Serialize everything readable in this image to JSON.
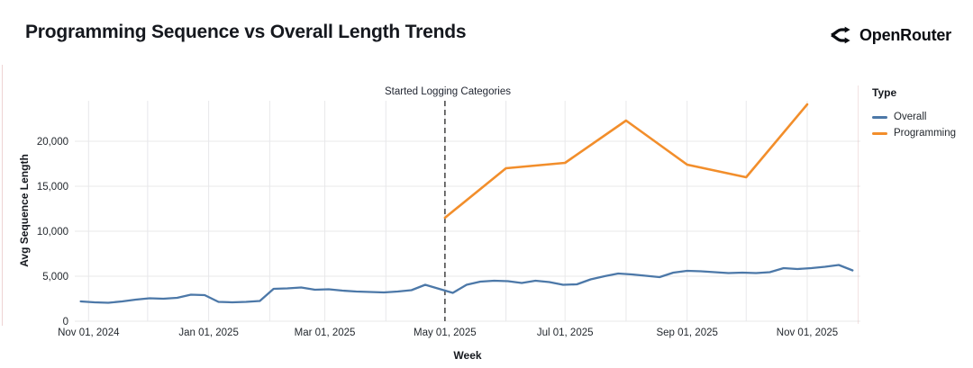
{
  "header": {
    "title": "Programming Sequence vs Overall Length Trends",
    "brand": "OpenRouter"
  },
  "chart_data": {
    "type": "line",
    "title": "Programming Sequence vs Overall Length Trends",
    "xlabel": "Week",
    "ylabel": "Avg Sequence Length",
    "grid": true,
    "legend_position": "right",
    "x_domain": [
      "2024-10-25",
      "2025-11-28"
    ],
    "y_domain": [
      0,
      24500
    ],
    "y_ticks": [
      0,
      5000,
      10000,
      15000,
      20000
    ],
    "x_ticks": [
      {
        "date": "2024-11-01",
        "label": "Nov 01, 2024"
      },
      {
        "date": "2025-01-01",
        "label": "Jan 01, 2025"
      },
      {
        "date": "2025-03-01",
        "label": "Mar 01, 2025"
      },
      {
        "date": "2025-05-01",
        "label": "May 01, 2025"
      },
      {
        "date": "2025-07-01",
        "label": "Jul 01, 2025"
      },
      {
        "date": "2025-09-01",
        "label": "Sep 01, 2025"
      },
      {
        "date": "2025-11-01",
        "label": "Nov 01, 2025"
      }
    ],
    "grid_dates": [
      "2024-11-01",
      "2024-12-01",
      "2025-01-01",
      "2025-02-01",
      "2025-03-01",
      "2025-04-01",
      "2025-05-01",
      "2025-06-01",
      "2025-07-01",
      "2025-08-01",
      "2025-09-01",
      "2025-10-01",
      "2025-11-01"
    ],
    "annotation": {
      "label": "Started Logging Categories",
      "date": "2025-05-01"
    },
    "legend": {
      "title": "Type",
      "entries": [
        {
          "label": "Overall",
          "color": "#4c78a8"
        },
        {
          "label": "Programming",
          "color": "#f28e2b"
        }
      ]
    },
    "series": [
      {
        "name": "Overall",
        "color": "#4c78a8",
        "stroke_width": 2.3,
        "points": [
          [
            "2024-10-28",
            2200
          ],
          [
            "2024-11-04",
            2100
          ],
          [
            "2024-11-11",
            2050
          ],
          [
            "2024-11-18",
            2200
          ],
          [
            "2024-11-25",
            2400
          ],
          [
            "2024-12-02",
            2550
          ],
          [
            "2024-12-09",
            2500
          ],
          [
            "2024-12-16",
            2600
          ],
          [
            "2024-12-23",
            2950
          ],
          [
            "2024-12-30",
            2900
          ],
          [
            "2025-01-06",
            2150
          ],
          [
            "2025-01-13",
            2100
          ],
          [
            "2025-01-20",
            2150
          ],
          [
            "2025-01-27",
            2250
          ],
          [
            "2025-02-03",
            3600
          ],
          [
            "2025-02-10",
            3650
          ],
          [
            "2025-02-17",
            3750
          ],
          [
            "2025-02-24",
            3500
          ],
          [
            "2025-03-03",
            3550
          ],
          [
            "2025-03-10",
            3400
          ],
          [
            "2025-03-17",
            3300
          ],
          [
            "2025-03-24",
            3250
          ],
          [
            "2025-03-31",
            3200
          ],
          [
            "2025-04-07",
            3300
          ],
          [
            "2025-04-14",
            3450
          ],
          [
            "2025-04-21",
            4050
          ],
          [
            "2025-04-28",
            3600
          ],
          [
            "2025-05-05",
            3150
          ],
          [
            "2025-05-12",
            4050
          ],
          [
            "2025-05-19",
            4400
          ],
          [
            "2025-05-26",
            4500
          ],
          [
            "2025-06-02",
            4450
          ],
          [
            "2025-06-09",
            4250
          ],
          [
            "2025-06-16",
            4500
          ],
          [
            "2025-06-23",
            4350
          ],
          [
            "2025-06-30",
            4050
          ],
          [
            "2025-07-07",
            4100
          ],
          [
            "2025-07-14",
            4650
          ],
          [
            "2025-07-21",
            5000
          ],
          [
            "2025-07-28",
            5300
          ],
          [
            "2025-08-04",
            5200
          ],
          [
            "2025-08-11",
            5050
          ],
          [
            "2025-08-18",
            4900
          ],
          [
            "2025-08-25",
            5400
          ],
          [
            "2025-09-01",
            5600
          ],
          [
            "2025-09-08",
            5550
          ],
          [
            "2025-09-15",
            5450
          ],
          [
            "2025-09-22",
            5350
          ],
          [
            "2025-09-29",
            5400
          ],
          [
            "2025-10-06",
            5350
          ],
          [
            "2025-10-13",
            5450
          ],
          [
            "2025-10-20",
            5900
          ],
          [
            "2025-10-27",
            5800
          ],
          [
            "2025-11-03",
            5900
          ],
          [
            "2025-11-10",
            6050
          ],
          [
            "2025-11-17",
            6250
          ],
          [
            "2025-11-24",
            5650
          ]
        ]
      },
      {
        "name": "Programming",
        "color": "#f28e2b",
        "stroke_width": 2.6,
        "points": [
          [
            "2025-05-01",
            11500
          ],
          [
            "2025-06-01",
            17000
          ],
          [
            "2025-07-01",
            17600
          ],
          [
            "2025-08-01",
            22300
          ],
          [
            "2025-09-01",
            17400
          ],
          [
            "2025-10-01",
            16000
          ],
          [
            "2025-11-01",
            24100
          ]
        ]
      }
    ]
  }
}
